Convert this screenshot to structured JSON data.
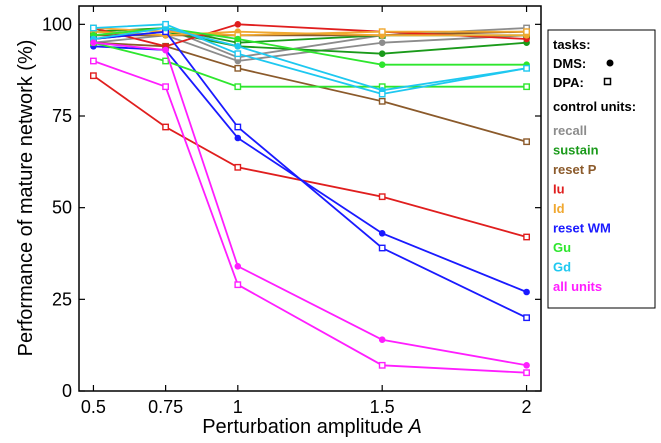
{
  "chart_data": {
    "type": "line",
    "xlabel": "Perturbation amplitude",
    "xlabel_var": "A",
    "ylabel": "Performance of mature network (%)",
    "x": [
      0.5,
      0.75,
      1,
      1.5,
      2
    ],
    "x_tick_labels": [
      "0.5",
      "0.75",
      "1",
      "1.5",
      "2"
    ],
    "y_ticks": [
      0,
      25,
      50,
      75,
      100
    ],
    "y_tick_labels": [
      "0",
      "25",
      "50",
      "75",
      "100"
    ],
    "xlim": [
      0.45,
      2.05
    ],
    "ylim": [
      0,
      105
    ],
    "grid": false,
    "legend": {
      "placement": "right-outside",
      "tasks_title": "tasks:",
      "tasks": [
        {
          "name": "DMS:",
          "marker": "filled-circle"
        },
        {
          "name": "DPA:",
          "marker": "open-square"
        }
      ],
      "units_title": "control units:",
      "units": [
        {
          "name": "recall",
          "color": "#8c8c8c"
        },
        {
          "name": "sustain",
          "color": "#1a9a1a"
        },
        {
          "name": "reset P",
          "color": "#8b5a2b"
        },
        {
          "name": "Iu",
          "color": "#e01e1e"
        },
        {
          "name": "Id",
          "color": "#f0a830"
        },
        {
          "name": "reset WM",
          "color": "#1a1aff"
        },
        {
          "name": "Gu",
          "color": "#2ee62e"
        },
        {
          "name": "Gd",
          "color": "#1ec8f0"
        },
        {
          "name": "all units",
          "color": "#ff1eff"
        }
      ]
    },
    "series": [
      {
        "unit": "recall",
        "task": "DMS",
        "color": "#8c8c8c",
        "values": [
          95,
          97,
          90,
          95,
          97
        ]
      },
      {
        "unit": "recall",
        "task": "DPA",
        "color": "#8c8c8c",
        "values": [
          97,
          99,
          91,
          97,
          99
        ]
      },
      {
        "unit": "sustain",
        "task": "DMS",
        "color": "#1a9a1a",
        "values": [
          96,
          98,
          94,
          92,
          95
        ]
      },
      {
        "unit": "sustain",
        "task": "DPA",
        "color": "#1a9a1a",
        "values": [
          98,
          99,
          95,
          97,
          97
        ]
      },
      {
        "unit": "reset P",
        "task": "DMS",
        "color": "#8b5a2b",
        "values": [
          97,
          97,
          97,
          97,
          98
        ]
      },
      {
        "unit": "reset P",
        "task": "DPA",
        "color": "#8b5a2b",
        "values": [
          95,
          94,
          88,
          79,
          68
        ]
      },
      {
        "unit": "Iu",
        "task": "DMS",
        "color": "#e01e1e",
        "values": [
          99,
          94,
          100,
          98,
          96
        ]
      },
      {
        "unit": "Iu",
        "task": "DPA",
        "color": "#e01e1e",
        "values": [
          86,
          72,
          61,
          53,
          42
        ]
      },
      {
        "unit": "Id",
        "task": "DMS",
        "color": "#f0a830",
        "values": [
          98,
          97,
          98,
          97,
          97
        ]
      },
      {
        "unit": "Id",
        "task": "DPA",
        "color": "#f0a830",
        "values": [
          99,
          98,
          97,
          98,
          98
        ]
      },
      {
        "unit": "reset WM",
        "task": "DMS",
        "color": "#1a1aff",
        "values": [
          94,
          93,
          69,
          43,
          27
        ]
      },
      {
        "unit": "reset WM",
        "task": "DPA",
        "color": "#1a1aff",
        "values": [
          96,
          98,
          72,
          39,
          20
        ]
      },
      {
        "unit": "Gu",
        "task": "DMS",
        "color": "#2ee62e",
        "values": [
          97,
          99,
          96,
          89,
          89
        ]
      },
      {
        "unit": "Gu",
        "task": "DPA",
        "color": "#2ee62e",
        "values": [
          95,
          90,
          83,
          83,
          83
        ]
      },
      {
        "unit": "Gd",
        "task": "DMS",
        "color": "#1ec8f0",
        "values": [
          96,
          99,
          94,
          82,
          88
        ]
      },
      {
        "unit": "Gd",
        "task": "DPA",
        "color": "#1ec8f0",
        "values": [
          99,
          100,
          92,
          81,
          88
        ]
      },
      {
        "unit": "all units",
        "task": "DMS",
        "color": "#ff1eff",
        "values": [
          95,
          93,
          34,
          14,
          7
        ]
      },
      {
        "unit": "all units",
        "task": "DPA",
        "color": "#ff1eff",
        "values": [
          90,
          83,
          29,
          7,
          5
        ]
      }
    ]
  }
}
